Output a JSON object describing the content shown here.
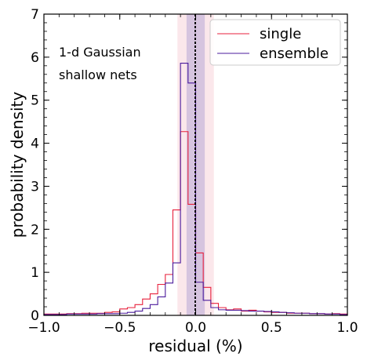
{
  "chart_data": {
    "type": "histogram-step",
    "xlabel": "residual (%)",
    "ylabel": "probability density",
    "xlim": [
      -1.0,
      1.0
    ],
    "ylim": [
      0,
      7
    ],
    "x_ticks": [
      "−1.0",
      "−0.5",
      "0.0",
      "0.5",
      "1.0"
    ],
    "x_tick_values": [
      -1.0,
      -0.5,
      0.0,
      0.5,
      1.0
    ],
    "y_ticks": [
      "0",
      "1",
      "2",
      "3",
      "4",
      "5",
      "6",
      "7"
    ],
    "y_tick_values": [
      0,
      1,
      2,
      3,
      4,
      5,
      6,
      7
    ],
    "annotations": [
      "1-d Gaussian",
      "shallow nets"
    ],
    "legend_position": "top-right",
    "bin_edges": [
      -1.0,
      -0.95,
      -0.9,
      -0.85,
      -0.8,
      -0.75,
      -0.7,
      -0.65,
      -0.6,
      -0.55,
      -0.5,
      -0.45,
      -0.4,
      -0.35,
      -0.3,
      -0.25,
      -0.2,
      -0.15,
      -0.1,
      -0.05,
      0.0,
      0.05,
      0.1,
      0.15,
      0.2,
      0.25,
      0.3,
      0.35,
      0.4,
      0.45,
      0.5,
      0.55,
      0.6,
      0.65,
      0.7,
      0.75,
      0.8,
      0.85,
      0.9,
      0.95,
      1.0
    ],
    "series": [
      {
        "name": "single",
        "color": "#e8203c",
        "values": [
          0.03,
          0.03,
          0.03,
          0.04,
          0.04,
          0.05,
          0.05,
          0.05,
          0.07,
          0.08,
          0.15,
          0.18,
          0.25,
          0.38,
          0.5,
          0.72,
          0.95,
          2.45,
          4.27,
          2.58,
          1.45,
          0.65,
          0.28,
          0.18,
          0.13,
          0.15,
          0.1,
          0.12,
          0.1,
          0.08,
          0.07,
          0.07,
          0.05,
          0.05,
          0.05,
          0.04,
          0.04,
          0.03,
          0.04,
          0.03
        ],
        "band": [
          -0.12,
          0.12
        ],
        "band_color": "#f7c9d3",
        "vline": -0.005
      },
      {
        "name": "ensemble",
        "color": "#4b1b9c",
        "values": [
          0.02,
          0.02,
          0.02,
          0.03,
          0.03,
          0.03,
          0.03,
          0.04,
          0.04,
          0.04,
          0.05,
          0.07,
          0.1,
          0.16,
          0.25,
          0.43,
          0.75,
          1.22,
          5.86,
          5.4,
          0.77,
          0.35,
          0.18,
          0.13,
          0.12,
          0.12,
          0.11,
          0.1,
          0.1,
          0.09,
          0.08,
          0.07,
          0.06,
          0.05,
          0.05,
          0.04,
          0.04,
          0.03,
          0.03,
          0.02
        ],
        "band": [
          -0.06,
          0.06
        ],
        "band_color": "#b8a8d6",
        "vline": 0.0
      }
    ]
  }
}
